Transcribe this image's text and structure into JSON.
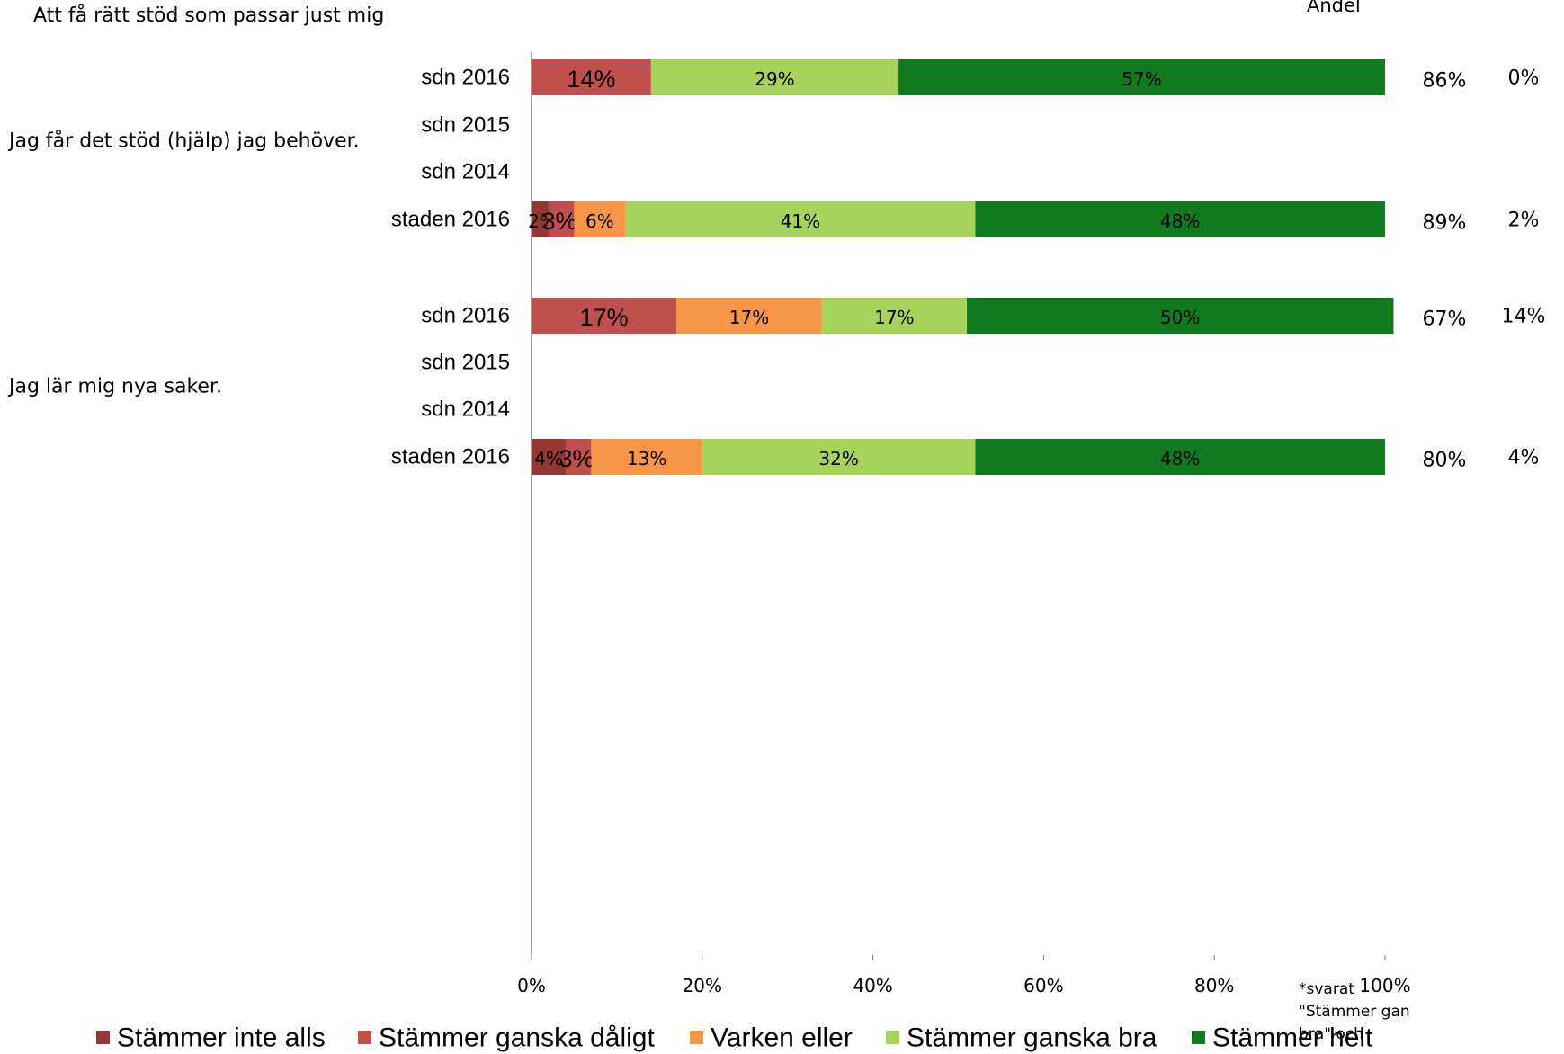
{
  "header": {
    "title": "Att få rätt stöd som passar just mig",
    "andel_label": "Andel"
  },
  "footnote": [
    "*svarat",
    "\"Stämmer gan",
    "bra\" och"
  ],
  "chart_data": {
    "type": "bar",
    "orientation": "horizontal",
    "stacked": true,
    "xlim": [
      0,
      100
    ],
    "x_ticks": [
      "0%",
      "20%",
      "40%",
      "60%",
      "80%",
      "100%"
    ],
    "grid": false,
    "legend_position": "bottom",
    "colors": {
      "Stämmer inte alls": "#953735",
      "Stämmer ganska dåligt": "#c0504d",
      "Varken eller": "#f79646",
      "Stämmer ganska bra": "#a6d35a",
      "Stämmer helt": "#117a1e"
    },
    "legend": [
      "Stämmer inte alls",
      "Stämmer ganska dåligt",
      "Varken eller",
      "Stämmer ganska bra",
      "Stämmer helt"
    ],
    "groups": [
      {
        "label": "Jag får det stöd (hjälp) jag behöver.",
        "rows": [
          {
            "category": "sdn 2016",
            "values": [
              0,
              14,
              0,
              29,
              57
            ],
            "labels": [
              "",
              "14%",
              "",
              "29%",
              "57%"
            ],
            "share": "86%",
            "other": "0%"
          },
          {
            "category": "sdn 2015",
            "values": [
              0,
              0,
              0,
              0,
              0
            ],
            "labels": [
              "",
              "",
              "",
              "",
              ""
            ],
            "share": "",
            "other": ""
          },
          {
            "category": "sdn 2014",
            "values": [
              0,
              0,
              0,
              0,
              0
            ],
            "labels": [
              "",
              "",
              "",
              "",
              ""
            ],
            "share": "",
            "other": ""
          },
          {
            "category": "staden 2016",
            "values": [
              2,
              3,
              6,
              41,
              48
            ],
            "labels": [
              "2%",
              "3%",
              "6%",
              "41%",
              "48%"
            ],
            "share": "89%",
            "other": "2%"
          }
        ]
      },
      {
        "label": "Jag lär mig nya saker.",
        "rows": [
          {
            "category": "sdn 2016",
            "values": [
              0,
              17,
              17,
              17,
              50
            ],
            "labels": [
              "",
              "17%",
              "17%",
              "17%",
              "50%"
            ],
            "share": "67%",
            "other": "14%"
          },
          {
            "category": "sdn 2015",
            "values": [
              0,
              0,
              0,
              0,
              0
            ],
            "labels": [
              "",
              "",
              "",
              "",
              ""
            ],
            "share": "",
            "other": ""
          },
          {
            "category": "sdn 2014",
            "values": [
              0,
              0,
              0,
              0,
              0
            ],
            "labels": [
              "",
              "",
              "",
              "",
              ""
            ],
            "share": "",
            "other": ""
          },
          {
            "category": "staden 2016",
            "values": [
              4,
              3,
              13,
              32,
              48
            ],
            "labels": [
              "4%",
              "3%",
              "13%",
              "32%",
              "48%"
            ],
            "share": "80%",
            "other": "4%"
          }
        ]
      }
    ]
  }
}
